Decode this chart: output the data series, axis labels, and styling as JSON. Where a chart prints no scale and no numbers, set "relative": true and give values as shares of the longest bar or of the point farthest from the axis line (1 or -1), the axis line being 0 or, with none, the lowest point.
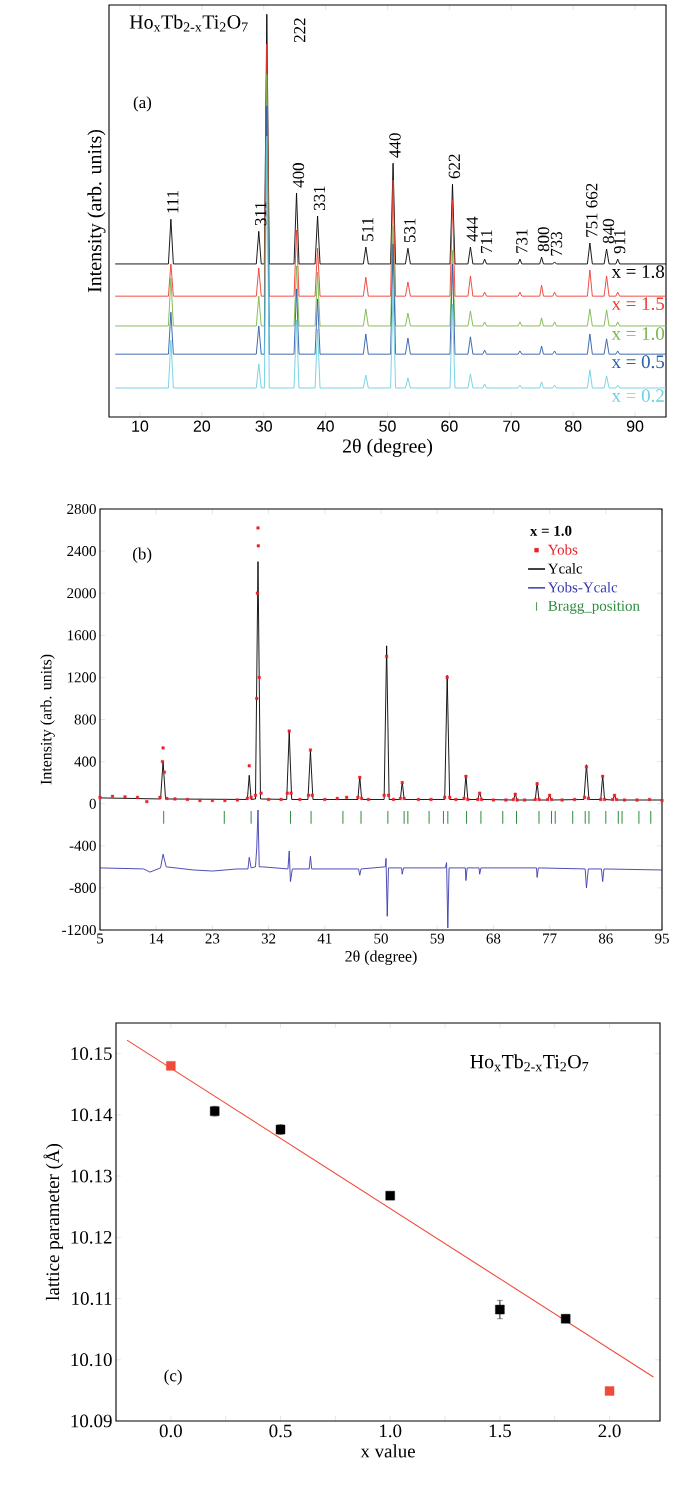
{
  "chart_data": [
    {
      "type": "line",
      "relative": true,
      "title": "Ho$_{x}$Tb$_{2-x}$Ti$_{2}$O$_{7}$",
      "xlabel": "2θ (degree)",
      "ylabel": "Intensity (arb. units)",
      "xlim": [
        5,
        95
      ],
      "xticks": [
        10,
        20,
        30,
        40,
        50,
        60,
        70,
        80,
        90
      ],
      "x": [
        6,
        14.6,
        15.0,
        15.4,
        28.8,
        29.2,
        29.6,
        30.1,
        30.5,
        30.9,
        34.9,
        35.3,
        35.7,
        38.3,
        38.7,
        39.1,
        46.1,
        46.5,
        46.9,
        50.5,
        50.9,
        51.3,
        52.9,
        53.3,
        53.7,
        60.1,
        60.5,
        60.9,
        63.0,
        63.4,
        63.8,
        65.4,
        65.7,
        66.0,
        71.1,
        71.4,
        71.7,
        74.6,
        74.9,
        75.2,
        76.7,
        77.0,
        77.3,
        82.3,
        82.7,
        83.1,
        85.0,
        85.4,
        85.8,
        86.9,
        87.2,
        87.5,
        95
      ],
      "annotations": [
        "(a)",
        {
          "text": "111",
          "x": 15.0,
          "y": 0.491
        },
        {
          "text": "311",
          "x": 29.2,
          "y": 0.461
        },
        {
          "text": "222",
          "x": 30.5,
          "y": 1.0
        },
        {
          "text": "400",
          "x": 35.3,
          "y": 0.556
        },
        {
          "text": "331",
          "x": 38.7,
          "y": 0.499
        },
        {
          "text": "511",
          "x": 46.5,
          "y": 0.422
        },
        {
          "text": "440",
          "x": 50.9,
          "y": 0.63
        },
        {
          "text": "531",
          "x": 53.3,
          "y": 0.419
        },
        {
          "text": "622",
          "x": 60.5,
          "y": 0.578
        },
        {
          "text": "444",
          "x": 63.4,
          "y": 0.422
        },
        {
          "text": "711",
          "x": 65.7,
          "y": 0.392
        },
        {
          "text": "731",
          "x": 71.4,
          "y": 0.392
        },
        {
          "text": "800",
          "x": 74.9,
          "y": 0.397
        },
        {
          "text": "733",
          "x": 77.0,
          "y": 0.385
        },
        {
          "text": "751 662",
          "x": 82.7,
          "y": 0.432
        },
        {
          "text": "840",
          "x": 85.4,
          "y": 0.417
        },
        {
          "text": "911",
          "x": 87.2,
          "y": 0.392
        }
      ],
      "series": [
        {
          "name": "x = 1.8",
          "color": "#000000",
          "values": [
            0.38,
            0.38,
            0.491,
            0.38,
            0.38,
            0.461,
            0.38,
            0.38,
            1.0,
            0.38,
            0.38,
            0.556,
            0.38,
            0.38,
            0.499,
            0.38,
            0.38,
            0.422,
            0.38,
            0.38,
            0.63,
            0.38,
            0.38,
            0.419,
            0.38,
            0.38,
            0.578,
            0.38,
            0.38,
            0.422,
            0.38,
            0.38,
            0.392,
            0.38,
            0.38,
            0.392,
            0.38,
            0.38,
            0.397,
            0.38,
            0.38,
            0.385,
            0.38,
            0.38,
            0.432,
            0.38,
            0.38,
            0.417,
            0.38,
            0.38,
            0.392,
            0.38,
            0.38
          ]
        },
        {
          "name": "x = 1.5",
          "color": "#ee3b2f",
          "values": [
            0.3,
            0.3,
            0.38,
            0.3,
            0.3,
            0.37,
            0.3,
            0.3,
            0.926,
            0.3,
            0.3,
            0.464,
            0.3,
            0.3,
            0.419,
            0.3,
            0.3,
            0.347,
            0.3,
            0.3,
            0.588,
            0.3,
            0.3,
            0.335,
            0.3,
            0.3,
            0.538,
            0.3,
            0.3,
            0.35,
            0.3,
            0.3,
            0.31,
            0.3,
            0.3,
            0.31,
            0.3,
            0.3,
            0.327,
            0.3,
            0.3,
            0.31,
            0.3,
            0.3,
            0.365,
            0.3,
            0.3,
            0.35,
            0.3,
            0.3,
            0.31,
            0.3,
            0.3
          ]
        },
        {
          "name": "x = 1.0",
          "color": "#7ab648",
          "values": [
            0.226,
            0.226,
            0.345,
            0.226,
            0.226,
            0.3,
            0.226,
            0.226,
            0.851,
            0.226,
            0.226,
            0.375,
            0.226,
            0.226,
            0.36,
            0.226,
            0.226,
            0.268,
            0.226,
            0.226,
            0.474,
            0.226,
            0.226,
            0.258,
            0.226,
            0.226,
            0.414,
            0.226,
            0.226,
            0.263,
            0.226,
            0.226,
            0.236,
            0.226,
            0.226,
            0.236,
            0.226,
            0.226,
            0.246,
            0.226,
            0.226,
            0.236,
            0.226,
            0.226,
            0.268,
            0.226,
            0.226,
            0.266,
            0.226,
            0.226,
            0.236,
            0.226,
            0.226
          ]
        },
        {
          "name": "x = 0.5",
          "color": "#2b5ca8",
          "values": [
            0.156,
            0.156,
            0.26,
            0.156,
            0.156,
            0.226,
            0.156,
            0.156,
            0.772,
            0.156,
            0.156,
            0.318,
            0.156,
            0.156,
            0.293,
            0.156,
            0.156,
            0.206,
            0.156,
            0.156,
            0.429,
            0.156,
            0.156,
            0.196,
            0.156,
            0.156,
            0.38,
            0.156,
            0.156,
            0.199,
            0.156,
            0.156,
            0.166,
            0.156,
            0.156,
            0.164,
            0.156,
            0.156,
            0.176,
            0.156,
            0.156,
            0.164,
            0.156,
            0.156,
            0.206,
            0.156,
            0.156,
            0.194,
            0.156,
            0.156,
            0.164,
            0.156,
            0.156
          ]
        },
        {
          "name": "x = 0.2",
          "color": "#6dcfe0",
          "values": [
            0.072,
            0.072,
            0.191,
            0.072,
            0.072,
            0.132,
            0.072,
            0.072,
            0.697,
            0.072,
            0.072,
            0.241,
            0.072,
            0.072,
            0.218,
            0.072,
            0.072,
            0.104,
            0.072,
            0.072,
            0.315,
            0.072,
            0.072,
            0.097,
            0.072,
            0.072,
            0.28,
            0.072,
            0.072,
            0.107,
            0.072,
            0.072,
            0.082,
            0.072,
            0.072,
            0.079,
            0.072,
            0.072,
            0.087,
            0.072,
            0.072,
            0.079,
            0.072,
            0.072,
            0.117,
            0.072,
            0.072,
            0.102,
            0.072,
            0.072,
            0.079,
            0.072,
            0.072
          ]
        }
      ]
    },
    {
      "type": "line",
      "xlabel": "2θ (degree)",
      "ylabel": "Intensity (arb. units)",
      "legend_title": "x = 1.0",
      "legend": "top right",
      "annotations": [
        "(b)"
      ],
      "xlim": [
        5,
        95
      ],
      "xticks": [
        5,
        14,
        23,
        32,
        41,
        50,
        59,
        68,
        77,
        86,
        95
      ],
      "ylim": [
        -1200,
        2800
      ],
      "yticks": [
        -1200,
        -800,
        -400,
        0,
        400,
        800,
        1200,
        1600,
        2000,
        2400,
        2800
      ],
      "series": [
        {
          "name": "Yobs",
          "type": "scatter",
          "marker": "square",
          "color": "#e8212a",
          "x": [
            5,
            7,
            9,
            11,
            12.5,
            14.6,
            15.0,
            15.1,
            15.3,
            15.7,
            17,
            19,
            21,
            23,
            25,
            27,
            28.6,
            28.9,
            29.2,
            29.9,
            30.1,
            30.2,
            30.3,
            30.35,
            30.5,
            30.8,
            32,
            34,
            35.0,
            35.3,
            35.6,
            37,
            38.4,
            38.7,
            39.0,
            41,
            43,
            44.5,
            46.3,
            46.6,
            46.9,
            48,
            50.5,
            50.9,
            51.2,
            52,
            53.1,
            53.4,
            53.7,
            56,
            58,
            60.2,
            60.6,
            61.0,
            62,
            63.3,
            63.6,
            63.9,
            65.5,
            65.8,
            66.1,
            68,
            70,
            71.2,
            71.5,
            71.8,
            73,
            74.7,
            75.0,
            75.3,
            76.7,
            77.0,
            77.3,
            79,
            81,
            82.6,
            82.9,
            83.2,
            85.2,
            85.5,
            85.8,
            87.1,
            87.4,
            87.7,
            89,
            91,
            93,
            95
          ],
          "values": [
            60,
            70,
            65,
            60,
            20,
            60,
            400,
            530,
            300,
            50,
            45,
            40,
            30,
            30,
            30,
            35,
            50,
            360,
            60,
            80,
            1000,
            2000,
            2620,
            2450,
            1200,
            100,
            40,
            40,
            100,
            690,
            100,
            40,
            80,
            510,
            80,
            40,
            50,
            60,
            60,
            250,
            50,
            40,
            80,
            1400,
            80,
            40,
            50,
            200,
            50,
            40,
            40,
            60,
            1200,
            60,
            40,
            50,
            260,
            40,
            40,
            100,
            40,
            35,
            35,
            40,
            90,
            35,
            35,
            40,
            190,
            40,
            40,
            80,
            40,
            35,
            40,
            60,
            350,
            50,
            40,
            260,
            40,
            40,
            80,
            40,
            35,
            35,
            40,
            30
          ]
        },
        {
          "name": "Ycalc",
          "color": "#000000",
          "x": [
            5,
            14.7,
            15.1,
            15.5,
            28.6,
            28.9,
            29.2,
            29.9,
            30.3,
            30.7,
            34.9,
            35.3,
            35.7,
            38.3,
            38.7,
            39.1,
            46.3,
            46.6,
            46.9,
            50.5,
            50.9,
            51.3,
            53.1,
            53.4,
            53.7,
            60.2,
            60.6,
            61.0,
            63.3,
            63.6,
            63.9,
            65.5,
            65.8,
            66.1,
            71.2,
            71.5,
            71.8,
            74.7,
            75.0,
            75.3,
            76.7,
            77.0,
            77.3,
            82.5,
            82.9,
            83.3,
            85.2,
            85.5,
            85.8,
            87.1,
            87.4,
            87.7,
            95
          ],
          "values": [
            55,
            45,
            400,
            45,
            40,
            270,
            40,
            45,
            2300,
            45,
            40,
            680,
            40,
            40,
            500,
            40,
            40,
            260,
            40,
            40,
            1500,
            40,
            40,
            210,
            40,
            40,
            1220,
            40,
            40,
            270,
            40,
            40,
            110,
            40,
            35,
            90,
            35,
            35,
            200,
            35,
            35,
            80,
            35,
            40,
            370,
            40,
            40,
            270,
            40,
            35,
            80,
            35,
            35
          ]
        },
        {
          "name": "Yobs-Ycalc",
          "color": "#3a3ab0",
          "x": [
            5,
            12,
            13,
            14.7,
            15.1,
            15.6,
            20,
            23,
            27,
            28.7,
            28.9,
            29.2,
            29.9,
            30.1,
            30.3,
            30.5,
            31,
            35.1,
            35.3,
            35.5,
            35.8,
            38.5,
            38.7,
            38.9,
            46.4,
            46.6,
            46.8,
            50.7,
            50.8,
            51.0,
            51.2,
            53.3,
            53.4,
            53.6,
            60.3,
            60.5,
            60.7,
            60.9,
            63.5,
            63.6,
            63.8,
            65.7,
            65.8,
            66,
            74.9,
            75,
            75.2,
            82.7,
            82.9,
            83.2,
            85.3,
            85.5,
            85.7,
            95
          ],
          "values": [
            -610,
            -620,
            -650,
            -610,
            -480,
            -600,
            -630,
            -640,
            -620,
            -620,
            -510,
            -610,
            -600,
            -420,
            -60,
            -600,
            -600,
            -620,
            -450,
            -740,
            -620,
            -620,
            -500,
            -620,
            -620,
            -680,
            -620,
            -600,
            -520,
            -1070,
            -610,
            -610,
            -670,
            -610,
            -610,
            -560,
            -1180,
            -610,
            -610,
            -730,
            -610,
            -610,
            -670,
            -610,
            -610,
            -700,
            -610,
            -620,
            -800,
            -620,
            -620,
            -740,
            -620,
            -630
          ]
        },
        {
          "name": "Bragg_position",
          "type": "bar",
          "color": "#2e8b3e",
          "base": [
            -190,
            -190,
            -190,
            -190,
            -190,
            -190,
            -190,
            -190,
            -190,
            -190,
            -190,
            -190,
            -190,
            -190,
            -190,
            -190,
            -190,
            -190,
            -190,
            -190,
            -190,
            -190,
            -190,
            -190,
            -190,
            -190,
            -190,
            -190
          ],
          "x": [
            15.2,
            24.9,
            29.2,
            35.5,
            38.8,
            43.9,
            46.8,
            51.1,
            53.7,
            54.3,
            57.7,
            60.0,
            60.7,
            63.7,
            66.0,
            69.5,
            71.7,
            75.3,
            77.3,
            77.9,
            80.7,
            82.7,
            83.3,
            86.0,
            88.0,
            88.6,
            91.3,
            93.2
          ],
          "values": [
            120,
            120,
            120,
            120,
            120,
            120,
            120,
            120,
            120,
            120,
            120,
            120,
            120,
            120,
            120,
            120,
            120,
            120,
            120,
            120,
            120,
            120,
            120,
            120,
            120,
            120,
            120,
            120
          ]
        }
      ]
    },
    {
      "type": "scatter",
      "marker": "square",
      "title": "Ho$_{x}$Tb$_{2-x}$Ti$_{2}$O$_{7}$",
      "xlabel": "x value",
      "ylabel": "lattice parameter (Å)",
      "annotations": [
        "(c)"
      ],
      "xlim": [
        -0.25,
        2.23
      ],
      "xticks": [
        {
          "value": 0,
          "label": "0.0"
        },
        {
          "value": 0.25,
          "label": null
        },
        {
          "value": 0.5,
          "label": "0.5"
        },
        {
          "value": 0.75,
          "label": null
        },
        {
          "value": 1,
          "label": "1.0"
        },
        {
          "value": 1.25,
          "label": null
        },
        {
          "value": 1.5,
          "label": "1.5"
        },
        {
          "value": 1.75,
          "label": null
        },
        {
          "value": 2,
          "label": "2.0"
        }
      ],
      "ylim": [
        10.09,
        10.155
      ],
      "yticks": [
        {
          "value": 10.09,
          "label": "10.09"
        },
        {
          "value": 10.1,
          "label": "10.10"
        },
        {
          "value": 10.11,
          "label": "10.11"
        },
        {
          "value": 10.12,
          "label": "10.12"
        },
        {
          "value": 10.13,
          "label": "10.13"
        },
        {
          "value": 10.14,
          "label": "10.14"
        },
        {
          "value": 10.15,
          "label": "10.15"
        }
      ],
      "series": [
        {
          "color": "#f04a3a",
          "type": "line",
          "marker": "none",
          "x": [
            -0.2,
            2.2
          ],
          "values": [
            10.1522,
            10.0972
          ]
        },
        {
          "color": "#000000",
          "x": [
            0.2,
            0.5,
            1.0,
            1.5,
            1.8
          ],
          "values": [
            10.1406,
            10.1376,
            10.1268,
            10.1082,
            10.1067
          ],
          "errors": [
            0.0008,
            0.0008,
            0.0003,
            0.0015,
            0.0006
          ]
        },
        {
          "color": "#f04a3a",
          "x": [
            0,
            2
          ],
          "values": [
            10.148,
            10.0949
          ]
        }
      ]
    }
  ]
}
